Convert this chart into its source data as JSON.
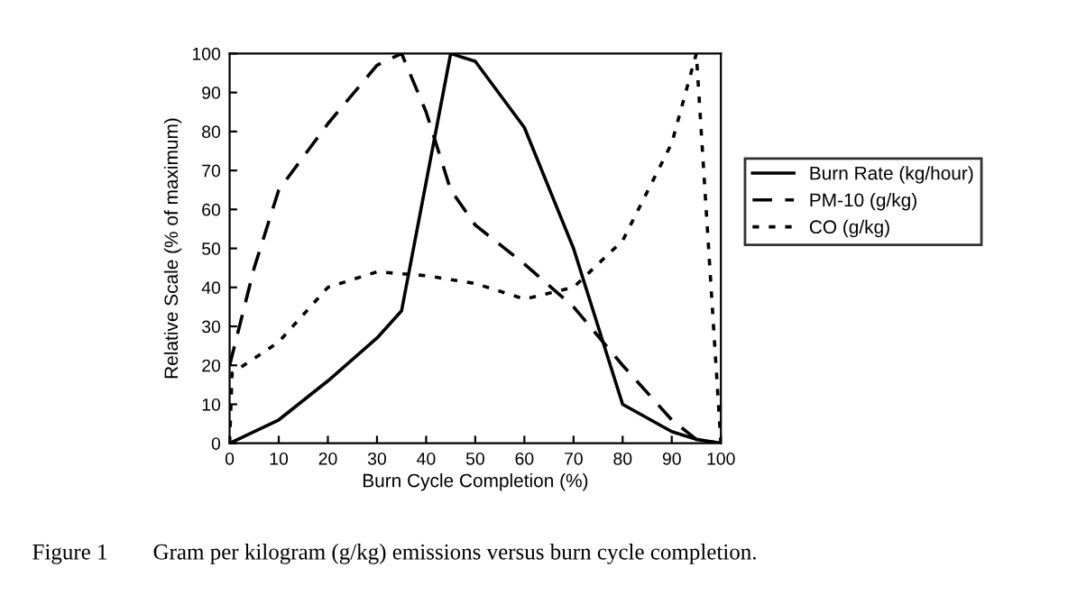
{
  "chart_data": {
    "type": "line",
    "xlabel": "Burn Cycle Completion (%)",
    "ylabel": "Relative Scale (% of maximum)",
    "xlim": [
      0,
      100
    ],
    "ylim": [
      0,
      100
    ],
    "xticks": [
      0,
      10,
      20,
      30,
      40,
      50,
      60,
      70,
      80,
      90,
      100
    ],
    "yticks": [
      0,
      10,
      20,
      30,
      40,
      50,
      60,
      70,
      80,
      90,
      100
    ],
    "legend": "right",
    "grid": false,
    "marker": "none",
    "series": [
      {
        "name": "Burn Rate (kg/hour)",
        "color": "#000000",
        "line_style": "solid",
        "x": [
          0,
          10,
          20,
          30,
          35,
          45,
          50,
          60,
          70,
          80,
          90,
          95,
          100
        ],
        "values": [
          0,
          6,
          16,
          27,
          34,
          100,
          98,
          81,
          50,
          10,
          3,
          1,
          0
        ]
      },
      {
        "name": "PM-10 (g/kg)",
        "color": "#000000",
        "line_style": "dashed",
        "x": [
          0,
          5,
          10,
          20,
          30,
          35,
          40,
          45,
          50,
          60,
          70,
          80,
          90,
          95,
          100
        ],
        "values": [
          20,
          45,
          65,
          82,
          97,
          100,
          85,
          65,
          56,
          46,
          35,
          20,
          6,
          1,
          0
        ]
      },
      {
        "name": "CO (g/kg)",
        "color": "#000000",
        "line_style": "dotted",
        "x": [
          0,
          0.5,
          10,
          20,
          30,
          40,
          50,
          60,
          70,
          80,
          90,
          95,
          100
        ],
        "values": [
          0,
          18,
          26,
          40,
          44,
          43,
          41,
          37,
          40,
          52,
          77,
          100,
          0
        ]
      }
    ],
    "annotations": [
      "Figure 1        Gram per kilogram (g/kg) emissions versus burn cycle completion."
    ]
  }
}
